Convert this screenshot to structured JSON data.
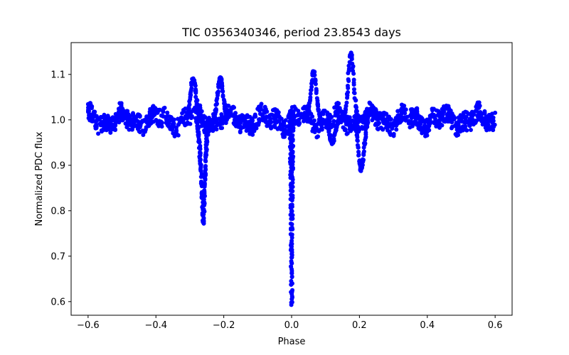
{
  "chart_data": {
    "type": "scatter",
    "title": "TIC 0356340346, period 23.8543 days",
    "xlabel": "Phase",
    "ylabel": "Normalized PDC flux",
    "xlim": [
      -0.65,
      0.65
    ],
    "ylim": [
      0.57,
      1.17
    ],
    "grid": false,
    "x_ticks": [
      -0.6,
      -0.4,
      -0.2,
      0.0,
      0.2,
      0.4,
      0.6
    ],
    "x_tick_labels": [
      "−0.6",
      "−0.4",
      "−0.2",
      "0.0",
      "0.2",
      "0.4",
      "0.6"
    ],
    "y_ticks": [
      0.6,
      0.7,
      0.8,
      0.9,
      1.0,
      1.1
    ],
    "y_tick_labels": [
      "0.6",
      "0.7",
      "0.8",
      "0.9",
      "1.0",
      "1.1"
    ],
    "series": [
      {
        "name": "flux",
        "color": "#0000ff",
        "baseline": {
          "x_range": [
            -0.6,
            0.6
          ],
          "y_center": 1.0,
          "y_spread": 0.025
        },
        "features": [
          {
            "kind": "eclipse",
            "name": "secondary",
            "x_start": -0.28,
            "x_min": -0.26,
            "x_end": -0.245,
            "y_min": 0.77
          },
          {
            "kind": "eclipse",
            "name": "primary",
            "x_start": -0.004,
            "x_min": 0.0,
            "x_end": 0.004,
            "y_min": 0.59
          },
          {
            "kind": "peak",
            "x": 0.175,
            "y_max": 1.145
          },
          {
            "kind": "dip",
            "x": 0.205,
            "y_min": 0.89
          },
          {
            "kind": "peak",
            "x": -0.29,
            "y_max": 1.09
          },
          {
            "kind": "peak",
            "x": -0.21,
            "y_max": 1.095
          },
          {
            "kind": "peak",
            "x": 0.065,
            "y_max": 1.105
          },
          {
            "kind": "dip",
            "x": 0.12,
            "y_min": 0.95
          }
        ]
      }
    ]
  }
}
